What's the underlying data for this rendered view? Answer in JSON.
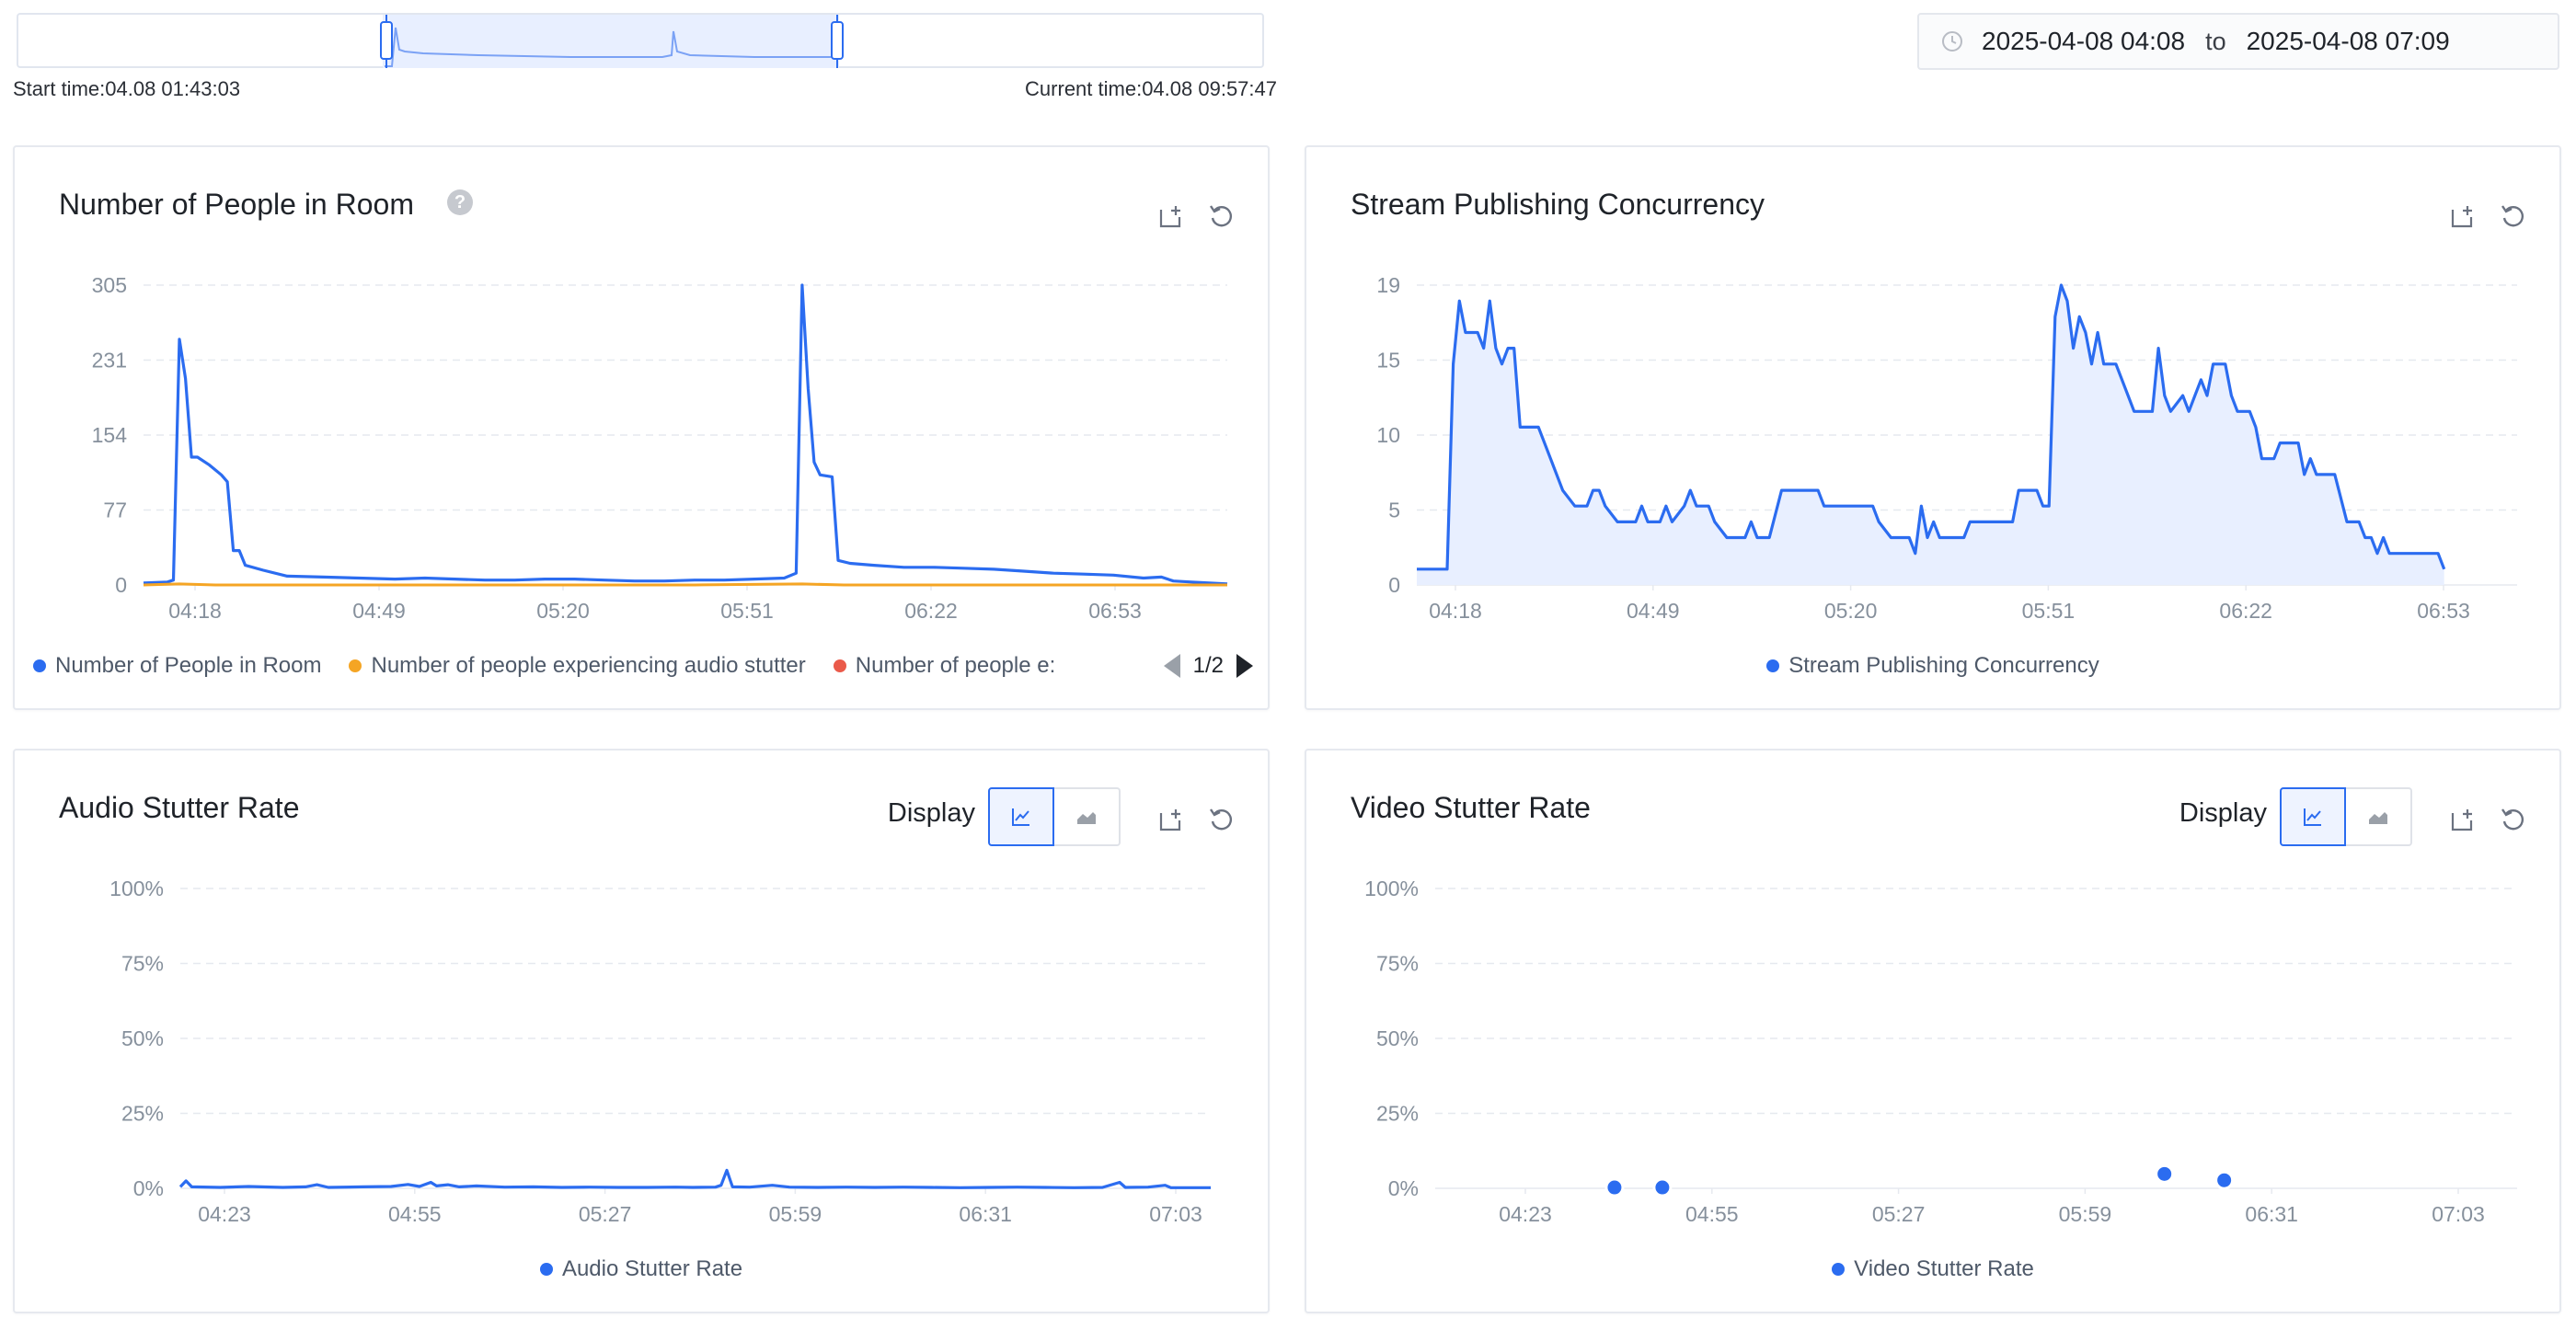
{
  "timeline": {
    "start_label": "Start time:04.08 01:43:03",
    "current_label": "Current time:04.08 09:57:47"
  },
  "range": {
    "start": "2025-04-08 04:08",
    "to": "to",
    "end": "2025-04-08 07:09"
  },
  "colors": {
    "primary": "#2b6cf0",
    "orange": "#f5a524",
    "red": "#ea5a4a",
    "area_fill": "#e8efff",
    "grid": "#e6e9ef",
    "axis_text": "#86909c"
  },
  "icons": {
    "export": "export-icon",
    "reset": "reset-icon",
    "help": "help-icon",
    "clock": "clock-icon",
    "line": "line-chart-icon",
    "area": "area-chart-icon"
  },
  "panels": {
    "people": {
      "title": "Number of People in Room",
      "help": "?",
      "legend": [
        "Number of People in Room",
        "Number of people experiencing audio stutter",
        "Number of people e:"
      ],
      "pager": "1/2"
    },
    "concurrency": {
      "title": "Stream Publishing Concurrency",
      "legend": [
        "Stream Publishing Concurrency"
      ]
    },
    "audio": {
      "title": "Audio Stutter Rate",
      "display": "Display",
      "legend": [
        "Audio Stutter Rate"
      ]
    },
    "video": {
      "title": "Video Stutter Rate",
      "display": "Display",
      "legend": [
        "Video Stutter Rate"
      ]
    }
  },
  "chart_data": [
    {
      "id": "people",
      "type": "line",
      "title": "Number of People in Room",
      "x_range": [
        "04:08",
        "07:09"
      ],
      "x_ticks": [
        "04:18",
        "04:49",
        "05:20",
        "05:51",
        "06:22",
        "06:53"
      ],
      "y_ticks": [
        "0",
        "77",
        "154",
        "231",
        "305"
      ],
      "ylim": [
        0,
        305
      ],
      "legend_position": "bottom",
      "series": [
        {
          "name": "Number of People in Room",
          "color": "#2b6cf0",
          "points": [
            [
              "04:08",
              2
            ],
            [
              "04:12",
              3
            ],
            [
              "04:13",
              5
            ],
            [
              "04:14",
              250
            ],
            [
              "04:15",
              210
            ],
            [
              "04:16",
              130
            ],
            [
              "04:17",
              130
            ],
            [
              "04:19",
              122
            ],
            [
              "04:21",
              112
            ],
            [
              "04:22",
              105
            ],
            [
              "04:23",
              35
            ],
            [
              "04:24",
              35
            ],
            [
              "04:25",
              20
            ],
            [
              "04:28",
              15
            ],
            [
              "04:32",
              9
            ],
            [
              "04:38",
              8
            ],
            [
              "04:44",
              7
            ],
            [
              "04:50",
              6
            ],
            [
              "04:55",
              7
            ],
            [
              "05:00",
              6
            ],
            [
              "05:05",
              5
            ],
            [
              "05:10",
              5
            ],
            [
              "05:15",
              6
            ],
            [
              "05:20",
              6
            ],
            [
              "05:25",
              5
            ],
            [
              "05:30",
              4
            ],
            [
              "05:35",
              4
            ],
            [
              "05:40",
              5
            ],
            [
              "05:45",
              5
            ],
            [
              "05:50",
              6
            ],
            [
              "05:55",
              7
            ],
            [
              "05:57",
              12
            ],
            [
              "05:58",
              305
            ],
            [
              "05:59",
              200
            ],
            [
              "06:00",
              125
            ],
            [
              "06:01",
              112
            ],
            [
              "06:03",
              110
            ],
            [
              "06:04",
              25
            ],
            [
              "06:06",
              22
            ],
            [
              "06:10",
              20
            ],
            [
              "06:15",
              18
            ],
            [
              "06:20",
              18
            ],
            [
              "06:25",
              17
            ],
            [
              "06:30",
              16
            ],
            [
              "06:35",
              14
            ],
            [
              "06:40",
              12
            ],
            [
              "06:45",
              11
            ],
            [
              "06:50",
              10
            ],
            [
              "06:55",
              7
            ],
            [
              "06:58",
              8
            ],
            [
              "07:00",
              4
            ],
            [
              "07:03",
              3
            ],
            [
              "07:06",
              2
            ],
            [
              "07:09",
              1
            ]
          ]
        },
        {
          "name": "Number of people experiencing audio stutter",
          "color": "#f5a524",
          "points": [
            [
              "04:08",
              0
            ],
            [
              "04:14",
              1
            ],
            [
              "04:20",
              0
            ],
            [
              "04:40",
              0
            ],
            [
              "05:00",
              0
            ],
            [
              "05:20",
              0
            ],
            [
              "05:40",
              0
            ],
            [
              "05:58",
              1
            ],
            [
              "06:05",
              0
            ],
            [
              "06:30",
              0
            ],
            [
              "06:50",
              0
            ],
            [
              "07:09",
              0
            ]
          ]
        }
      ]
    },
    {
      "id": "concurrency",
      "type": "area",
      "title": "Stream Publishing Concurrency",
      "x_range": [
        "04:08",
        "07:09"
      ],
      "x_ticks": [
        "04:18",
        "04:49",
        "05:20",
        "05:51",
        "06:22",
        "06:53"
      ],
      "y_ticks": [
        "0",
        "5",
        "10",
        "15",
        "19"
      ],
      "ylim": [
        0,
        19
      ],
      "legend_position": "bottom",
      "series": [
        {
          "name": "Stream Publishing Concurrency",
          "color": "#2b6cf0",
          "points": [
            [
              "04:08",
              1
            ],
            [
              "04:13",
              1
            ],
            [
              "04:14",
              14
            ],
            [
              "04:15",
              18
            ],
            [
              "04:16",
              16
            ],
            [
              "04:18",
              16
            ],
            [
              "04:19",
              15
            ],
            [
              "04:20",
              18
            ],
            [
              "04:21",
              15
            ],
            [
              "04:22",
              14
            ],
            [
              "04:23",
              15
            ],
            [
              "04:24",
              15
            ],
            [
              "04:25",
              10
            ],
            [
              "04:28",
              10
            ],
            [
              "04:30",
              8
            ],
            [
              "04:32",
              6
            ],
            [
              "04:34",
              5
            ],
            [
              "04:36",
              5
            ],
            [
              "04:37",
              6
            ],
            [
              "04:38",
              6
            ],
            [
              "04:39",
              5
            ],
            [
              "04:41",
              4
            ],
            [
              "04:44",
              4
            ],
            [
              "04:45",
              5
            ],
            [
              "04:46",
              4
            ],
            [
              "04:48",
              4
            ],
            [
              "04:49",
              5
            ],
            [
              "04:50",
              4
            ],
            [
              "04:52",
              5
            ],
            [
              "04:53",
              6
            ],
            [
              "04:54",
              5
            ],
            [
              "04:56",
              5
            ],
            [
              "04:57",
              4
            ],
            [
              "04:59",
              3
            ],
            [
              "05:02",
              3
            ],
            [
              "05:03",
              4
            ],
            [
              "05:04",
              3
            ],
            [
              "05:06",
              3
            ],
            [
              "05:08",
              6
            ],
            [
              "05:14",
              6
            ],
            [
              "05:15",
              5
            ],
            [
              "05:23",
              5
            ],
            [
              "05:24",
              4
            ],
            [
              "05:26",
              3
            ],
            [
              "05:29",
              3
            ],
            [
              "05:30",
              2
            ],
            [
              "05:31",
              5
            ],
            [
              "05:32",
              3
            ],
            [
              "05:33",
              4
            ],
            [
              "05:34",
              3
            ],
            [
              "05:38",
              3
            ],
            [
              "05:39",
              4
            ],
            [
              "05:46",
              4
            ],
            [
              "05:47",
              6
            ],
            [
              "05:50",
              6
            ],
            [
              "05:51",
              5
            ],
            [
              "05:52",
              5
            ],
            [
              "05:53",
              17
            ],
            [
              "05:54",
              19
            ],
            [
              "05:55",
              18
            ],
            [
              "05:56",
              15
            ],
            [
              "05:57",
              17
            ],
            [
              "05:58",
              16
            ],
            [
              "05:59",
              14
            ],
            [
              "06:00",
              16
            ],
            [
              "06:01",
              14
            ],
            [
              "06:03",
              14
            ],
            [
              "06:05",
              12
            ],
            [
              "06:06",
              11
            ],
            [
              "06:09",
              11
            ],
            [
              "06:10",
              15
            ],
            [
              "06:11",
              12
            ],
            [
              "06:12",
              11
            ],
            [
              "06:14",
              12
            ],
            [
              "06:15",
              11
            ],
            [
              "06:16",
              12
            ],
            [
              "06:17",
              13
            ],
            [
              "06:18",
              12
            ],
            [
              "06:19",
              14
            ],
            [
              "06:21",
              14
            ],
            [
              "06:22",
              12
            ],
            [
              "06:23",
              11
            ],
            [
              "06:25",
              11
            ],
            [
              "06:26",
              10
            ],
            [
              "06:27",
              8
            ],
            [
              "06:29",
              8
            ],
            [
              "06:30",
              9
            ],
            [
              "06:33",
              9
            ],
            [
              "06:34",
              7
            ],
            [
              "06:35",
              8
            ],
            [
              "06:36",
              7
            ],
            [
              "06:39",
              7
            ],
            [
              "06:41",
              4
            ],
            [
              "06:43",
              4
            ],
            [
              "06:44",
              3
            ],
            [
              "06:45",
              3
            ],
            [
              "06:46",
              2
            ],
            [
              "06:47",
              3
            ],
            [
              "06:48",
              2
            ],
            [
              "06:50",
              2
            ],
            [
              "06:56",
              2
            ],
            [
              "06:57",
              1
            ]
          ]
        }
      ]
    },
    {
      "id": "audio",
      "type": "line",
      "title": "Audio Stutter Rate",
      "x_range": [
        "04:08",
        "07:09"
      ],
      "x_ticks": [
        "04:23",
        "04:55",
        "05:27",
        "05:59",
        "06:31",
        "07:03"
      ],
      "y_ticks": [
        "0%",
        "25%",
        "50%",
        "75%",
        "100%"
      ],
      "ylim": [
        0,
        100
      ],
      "legend_position": "bottom",
      "series": [
        {
          "name": "Audio Stutter Rate",
          "color": "#2b6cf0",
          "points": [
            [
              "04:08",
              0.5
            ],
            [
              "04:09",
              2.5
            ],
            [
              "04:10",
              0.5
            ],
            [
              "04:15",
              0.3
            ],
            [
              "04:20",
              0.6
            ],
            [
              "04:26",
              0.3
            ],
            [
              "04:30",
              0.5
            ],
            [
              "04:32",
              1.2
            ],
            [
              "04:34",
              0.3
            ],
            [
              "04:40",
              0.5
            ],
            [
              "04:45",
              0.6
            ],
            [
              "04:48",
              1.3
            ],
            [
              "04:50",
              0.6
            ],
            [
              "04:52",
              2.0
            ],
            [
              "04:53",
              0.8
            ],
            [
              "04:55",
              1.2
            ],
            [
              "04:57",
              0.5
            ],
            [
              "05:00",
              0.8
            ],
            [
              "05:05",
              0.4
            ],
            [
              "05:10",
              0.5
            ],
            [
              "05:15",
              0.3
            ],
            [
              "05:20",
              0.4
            ],
            [
              "05:25",
              0.3
            ],
            [
              "05:30",
              0.3
            ],
            [
              "05:35",
              0.4
            ],
            [
              "05:38",
              0.3
            ],
            [
              "05:42",
              0.4
            ],
            [
              "05:43",
              1.0
            ],
            [
              "05:44",
              6.0
            ],
            [
              "05:45",
              0.5
            ],
            [
              "05:48",
              0.4
            ],
            [
              "05:52",
              1.0
            ],
            [
              "05:55",
              0.4
            ],
            [
              "06:00",
              0.3
            ],
            [
              "06:05",
              0.4
            ],
            [
              "06:10",
              0.3
            ],
            [
              "06:15",
              0.4
            ],
            [
              "06:20",
              0.3
            ],
            [
              "06:25",
              0.2
            ],
            [
              "06:30",
              0.3
            ],
            [
              "06:35",
              0.4
            ],
            [
              "06:40",
              0.3
            ],
            [
              "06:45",
              0.2
            ],
            [
              "06:50",
              0.3
            ],
            [
              "06:53",
              2.0
            ],
            [
              "06:54",
              0.3
            ],
            [
              "06:58",
              0.4
            ],
            [
              "07:01",
              1.0
            ],
            [
              "07:02",
              0.2
            ],
            [
              "07:09",
              0.2
            ]
          ]
        }
      ]
    },
    {
      "id": "video",
      "type": "scatter",
      "title": "Video Stutter Rate",
      "x_range": [
        "04:08",
        "07:09"
      ],
      "x_ticks": [
        "04:23",
        "04:55",
        "05:27",
        "05:59",
        "06:31",
        "07:03"
      ],
      "y_ticks": [
        "0%",
        "25%",
        "50%",
        "75%",
        "100%"
      ],
      "ylim": [
        0,
        100
      ],
      "legend_position": "bottom",
      "series": [
        {
          "name": "Video Stutter Rate",
          "color": "#2b6cf0",
          "points": [
            [
              "04:38",
              0.3
            ],
            [
              "04:46",
              0.3
            ],
            [
              "06:10",
              4.8
            ],
            [
              "06:20",
              2.7
            ]
          ]
        }
      ]
    }
  ]
}
